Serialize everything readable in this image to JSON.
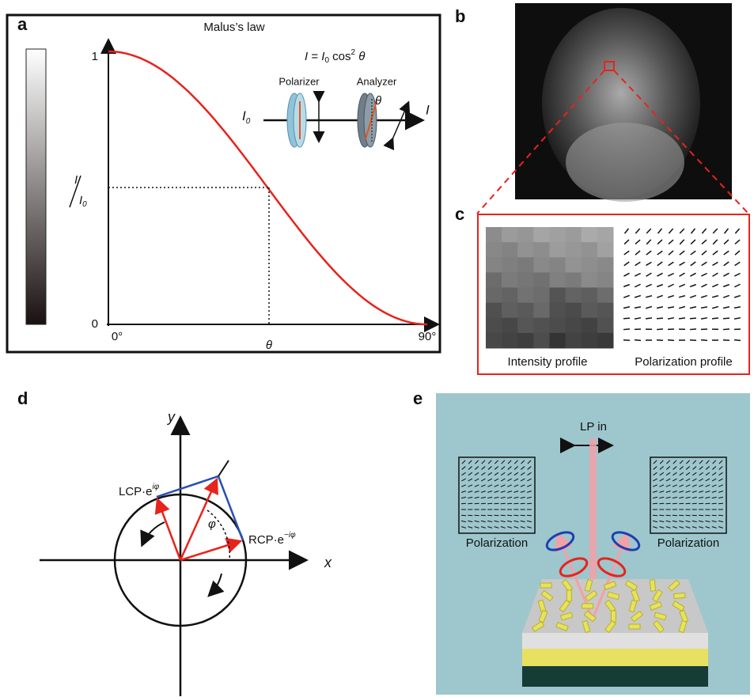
{
  "panels": {
    "a": {
      "label": "a",
      "title": "Malus’s law",
      "equation": {
        "lhs": "I",
        "eq": " = ",
        "i": "I",
        "sub": "0",
        "cos": " cos",
        "sup": "2",
        "theta": " θ"
      },
      "y_top": "1",
      "y_bottom": "0",
      "y_mid": {
        "num": "I",
        "den": "I",
        "den_sub": "0"
      },
      "x_left": "0°",
      "x_mid": "θ",
      "x_right": "90°",
      "polarizer": "Polarizer",
      "analyzer": "Analyzer",
      "input": {
        "main": "I",
        "sub": "0"
      },
      "output": "I",
      "angle": "θ"
    },
    "b": {
      "label": "b"
    },
    "c": {
      "label": "c",
      "left_caption": "Intensity profile",
      "right_caption": "Polarization profile"
    },
    "d": {
      "label": "d",
      "y_axis": "y",
      "x_axis": "x",
      "lcp": {
        "main": "LCP·e",
        "sup": "iφ"
      },
      "rcp": {
        "main": "RCP·e",
        "sup": "−iφ"
      },
      "angle": "φ"
    },
    "e": {
      "label": "e",
      "beam": "LP in",
      "left_caption": "Polarization",
      "right_caption": "Polarization"
    }
  }
}
